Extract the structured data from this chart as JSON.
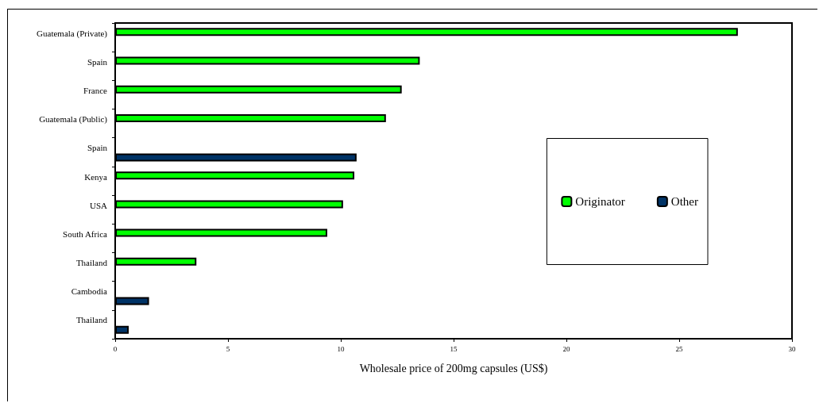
{
  "chart_data": {
    "type": "bar",
    "orientation": "horizontal",
    "xlabel": "Wholesale price of 200mg capsules (US$)",
    "categories": [
      "Guatemala (Private)",
      "Spain",
      "France",
      "Guatemala (Public)",
      "Spain",
      "Kenya",
      "USA",
      "South Africa",
      "Thailand",
      "Cambodia",
      "Thailand"
    ],
    "series": [
      {
        "name": "Originator",
        "color": "#00ff00",
        "values": [
          27.6,
          13.5,
          12.7,
          12.0,
          null,
          10.6,
          10.1,
          9.4,
          3.6,
          null,
          null
        ]
      },
      {
        "name": "Other",
        "color": "#003366",
        "values": [
          null,
          null,
          null,
          null,
          10.7,
          null,
          null,
          null,
          null,
          1.5,
          0.6
        ]
      }
    ],
    "xlim": [
      0,
      30
    ],
    "xticks": [
      0,
      5,
      10,
      15,
      20,
      25,
      30
    ],
    "grid": false,
    "legend": "right"
  }
}
